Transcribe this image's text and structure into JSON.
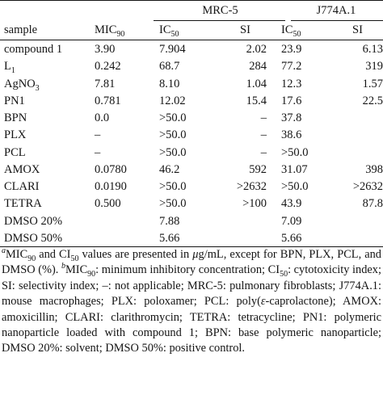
{
  "header": {
    "group1": "MRC-5",
    "group2": "J774A.1",
    "sample": "sample",
    "mic_base": "MIC",
    "mic_sub": "90",
    "ic_base": "IC",
    "ic_sub": "50",
    "si": "SI"
  },
  "rows": [
    {
      "sample": "compound 1",
      "sample_sub": "",
      "mic": "3.90",
      "ic1": "7.904",
      "si1": "2.02",
      "ic2": "23.9",
      "si2": "6.13"
    },
    {
      "sample": "L",
      "sample_sub": "1",
      "mic": "0.242",
      "ic1": "68.7",
      "si1": "284",
      "ic2": "77.2",
      "si2": "319"
    },
    {
      "sample": "AgNO",
      "sample_sub": "3",
      "mic": "7.81",
      "ic1": "8.10",
      "si1": "1.04",
      "ic2": "12.3",
      "si2": "1.57"
    },
    {
      "sample": "PN1",
      "sample_sub": "",
      "mic": "0.781",
      "ic1": "12.02",
      "si1": "15.4",
      "ic2": "17.6",
      "si2": "22.5"
    },
    {
      "sample": "BPN",
      "sample_sub": "",
      "mic": "0.0",
      "ic1": ">50.0",
      "si1": "–",
      "ic2": "37.8",
      "si2": ""
    },
    {
      "sample": "PLX",
      "sample_sub": "",
      "mic": "–",
      "ic1": ">50.0",
      "si1": "–",
      "ic2": "38.6",
      "si2": ""
    },
    {
      "sample": "PCL",
      "sample_sub": "",
      "mic": "–",
      "ic1": ">50.0",
      "si1": "–",
      "ic2": ">50.0",
      "si2": ""
    },
    {
      "sample": "AMOX",
      "sample_sub": "",
      "mic": "0.0780",
      "ic1": "46.2",
      "si1": "592",
      "ic2": "31.07",
      "si2": "398"
    },
    {
      "sample": "CLARI",
      "sample_sub": "",
      "mic": "0.0190",
      "ic1": ">50.0",
      "si1": ">2632",
      "ic2": ">50.0",
      "si2": ">2632"
    },
    {
      "sample": "TETRA",
      "sample_sub": "",
      "mic": "0.500",
      "ic1": ">50.0",
      "si1": ">100",
      "ic2": "43.9",
      "si2": "87.8"
    },
    {
      "sample": "DMSO 20%",
      "sample_sub": "",
      "mic": "",
      "ic1": "7.88",
      "si1": "",
      "ic2": "7.09",
      "si2": ""
    },
    {
      "sample": "DMSO 50%",
      "sample_sub": "",
      "mic": "",
      "ic1": "5.66",
      "si1": "",
      "ic2": "5.66",
      "si2": ""
    }
  ],
  "footnote": {
    "mark_a": "a",
    "t1": "MIC",
    "t1_sub": "90",
    "t2": " and CI",
    "t2_sub": "50",
    "t3": " values are presented in ",
    "mu": "μ",
    "t4": "g/mL, except for BPN, PLX, PCL, and DMSO (%). ",
    "mark_b": "b",
    "t5": "MIC",
    "t5_sub": "90",
    "t6": ": minimum inhibitory concentration; CI",
    "t6_sub": "50",
    "t7": ": cytotoxicity index; SI: selectivity index; –: not applicable; MRC-5: pulmonary fibroblasts; J774A.1: mouse macrophages; PLX: poloxamer; PCL: poly(",
    "eps": "ε",
    "t8": "-caprolactone); AMOX: amoxicillin; CLARI: clarithromycin; TETRA: tetracycline; PN1: polymeric nanoparticle loaded with compound 1; BPN: base polymeric nanoparticle; DMSO 20%: solvent; DMSO 50%: positive control."
  }
}
